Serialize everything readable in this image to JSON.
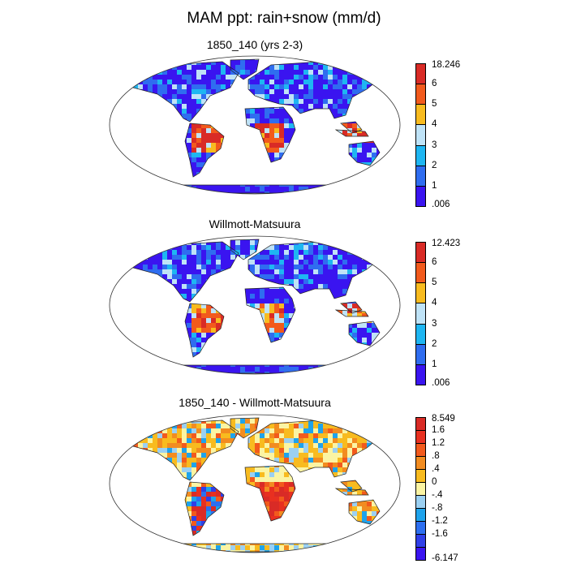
{
  "title": "MAM ppt: rain+snow (mm/d)",
  "panels": [
    {
      "id": "model",
      "title": "1850_140 (yrs 2-3)",
      "map_type": "precip",
      "colorbar": {
        "colors": [
          "#3a14f0",
          "#2f6df0",
          "#1eb6f2",
          "#bfe3f7",
          "#f8bb1f",
          "#f25a1c",
          "#d92b26"
        ],
        "labels": [
          "18.246",
          "6",
          "5",
          "4",
          "3",
          "2",
          "1",
          ".006"
        ]
      }
    },
    {
      "id": "obs",
      "title": "Willmott-Matsuura",
      "map_type": "precip",
      "colorbar": {
        "colors": [
          "#3a14f0",
          "#2f6df0",
          "#1eb6f2",
          "#bfe3f7",
          "#f8bb1f",
          "#f25a1c",
          "#d92b26"
        ],
        "labels": [
          "12.423",
          "6",
          "5",
          "4",
          "3",
          "2",
          "1",
          ".006"
        ]
      }
    },
    {
      "id": "diff",
      "title": "1850_140 - Willmott-Matsuura",
      "map_type": "diff",
      "colorbar": {
        "colors": [
          "#3a14f0",
          "#2f3fe8",
          "#2d6ff0",
          "#1ea3ec",
          "#9bd0f2",
          "#fbf4a3",
          "#f8bb1f",
          "#f28c20",
          "#f25a1c",
          "#e83020",
          "#d92b26"
        ],
        "labels": [
          "8.549",
          "1.6",
          "1.2",
          ".8",
          ".4",
          "0",
          "-.4",
          "-.8",
          "-1.2",
          "-1.6",
          "-6.147"
        ]
      }
    }
  ],
  "palette": {
    "land_outline": "#222222",
    "frame": "#333333"
  }
}
